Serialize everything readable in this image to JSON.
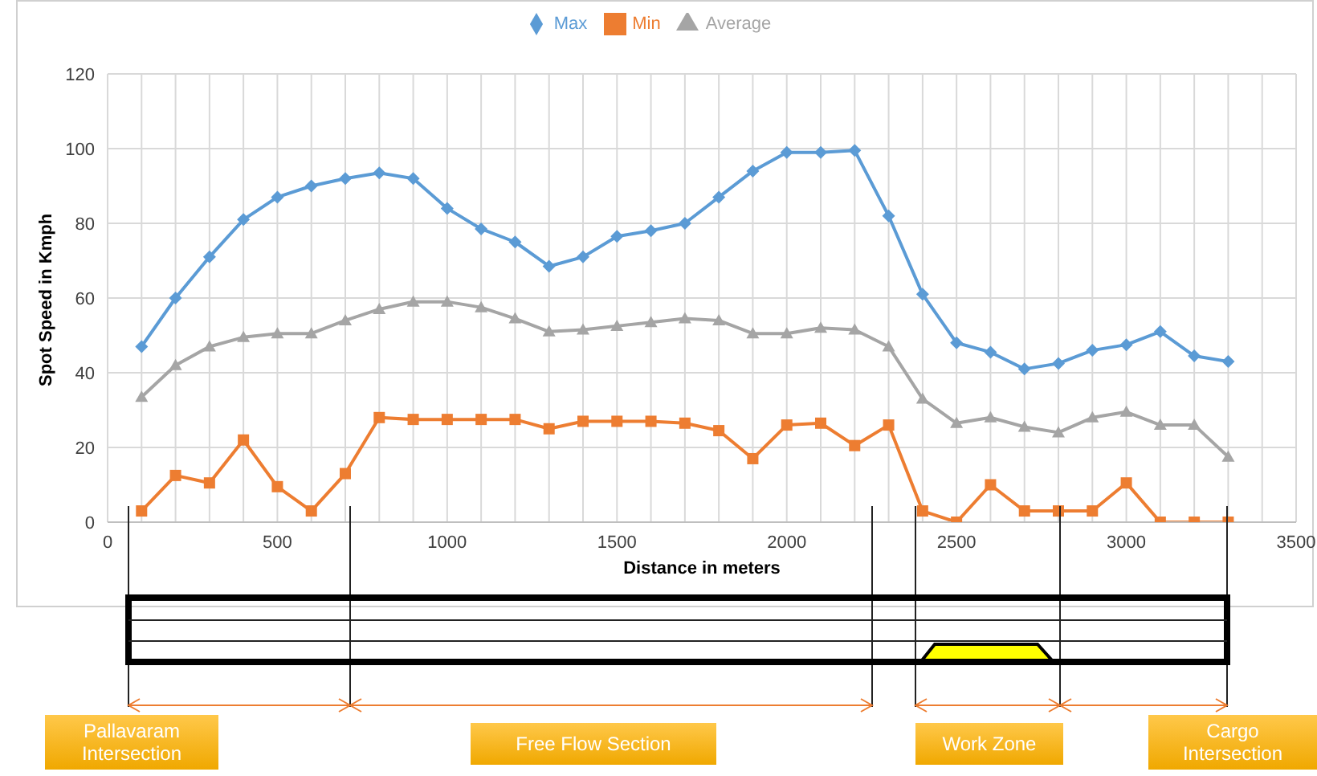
{
  "chart_data": {
    "type": "line",
    "xlabel": "Distance in meters",
    "ylabel": "Spot Speed in Kmph",
    "x": [
      100,
      200,
      300,
      400,
      500,
      600,
      700,
      800,
      900,
      1000,
      1100,
      1200,
      1300,
      1400,
      1500,
      1600,
      1700,
      1800,
      1900,
      2000,
      2100,
      2200,
      2300,
      2400,
      2500,
      2600,
      2700,
      2800,
      2900,
      3000,
      3100,
      3200,
      3300
    ],
    "series": [
      {
        "name": "Max",
        "color": "#5b9bd5",
        "marker": "diamond",
        "values": [
          47,
          60,
          71,
          81,
          87,
          90,
          92,
          93.5,
          92,
          84,
          78.5,
          75,
          68.5,
          71,
          76.5,
          78,
          80,
          87,
          94,
          99,
          99,
          99.5,
          82,
          61,
          48,
          45.5,
          41,
          42.5,
          46,
          47.5,
          51,
          44.5,
          43
        ]
      },
      {
        "name": "Min",
        "color": "#ed7d31",
        "marker": "square",
        "values": [
          3,
          12.5,
          10.5,
          22,
          9.5,
          3,
          13,
          28,
          27.5,
          27.5,
          27.5,
          27.5,
          25,
          27,
          27,
          27,
          26.5,
          24.5,
          17,
          26,
          26.5,
          20.5,
          26,
          3,
          0,
          10,
          3,
          3,
          3,
          10.5,
          0,
          0,
          0
        ]
      },
      {
        "name": "Average",
        "color": "#a5a5a5",
        "marker": "triangle",
        "values": [
          33.5,
          42,
          47,
          49.5,
          50.5,
          50.5,
          54,
          57,
          59,
          59,
          57.5,
          54.5,
          51,
          51.5,
          52.5,
          53.5,
          54.5,
          54,
          50.5,
          50.5,
          52,
          51.5,
          47,
          33,
          26.5,
          28,
          25.5,
          24,
          28,
          29.5,
          26,
          26,
          17.5
        ]
      }
    ],
    "xlim": [
      0,
      3500
    ],
    "xticks": [
      0,
      {
        "value": 100,
        "label": null
      },
      {
        "value": 200,
        "label": null
      },
      {
        "value": 300,
        "label": null
      },
      {
        "value": 400,
        "label": null
      },
      500,
      {
        "value": 600,
        "label": null
      },
      {
        "value": 700,
        "label": null
      },
      {
        "value": 800,
        "label": null
      },
      {
        "value": 900,
        "label": null
      },
      1000,
      {
        "value": 1100,
        "label": null
      },
      {
        "value": 1200,
        "label": null
      },
      {
        "value": 1300,
        "label": null
      },
      {
        "value": 1400,
        "label": null
      },
      1500,
      {
        "value": 1600,
        "label": null
      },
      {
        "value": 1700,
        "label": null
      },
      {
        "value": 1800,
        "label": null
      },
      {
        "value": 1900,
        "label": null
      },
      2000,
      {
        "value": 2100,
        "label": null
      },
      {
        "value": 2200,
        "label": null
      },
      {
        "value": 2300,
        "label": null
      },
      {
        "value": 2400,
        "label": null
      },
      2500,
      {
        "value": 2600,
        "label": null
      },
      {
        "value": 2700,
        "label": null
      },
      {
        "value": 2800,
        "label": null
      },
      {
        "value": 2900,
        "label": null
      },
      3000,
      {
        "value": 3100,
        "label": null
      },
      {
        "value": 3200,
        "label": null
      },
      {
        "value": 3300,
        "label": null
      },
      {
        "value": 3400,
        "label": null
      },
      3500
    ],
    "ylim": [
      0,
      120
    ],
    "yticks": [
      0,
      20,
      40,
      60,
      80,
      100,
      120
    ],
    "grid": true,
    "legend": "top",
    "line_style": "solid",
    "annotations": [
      "Pallavaram Intersection",
      "Free Flow Section",
      "Work Zone",
      "Cargo Intersection"
    ]
  }
}
